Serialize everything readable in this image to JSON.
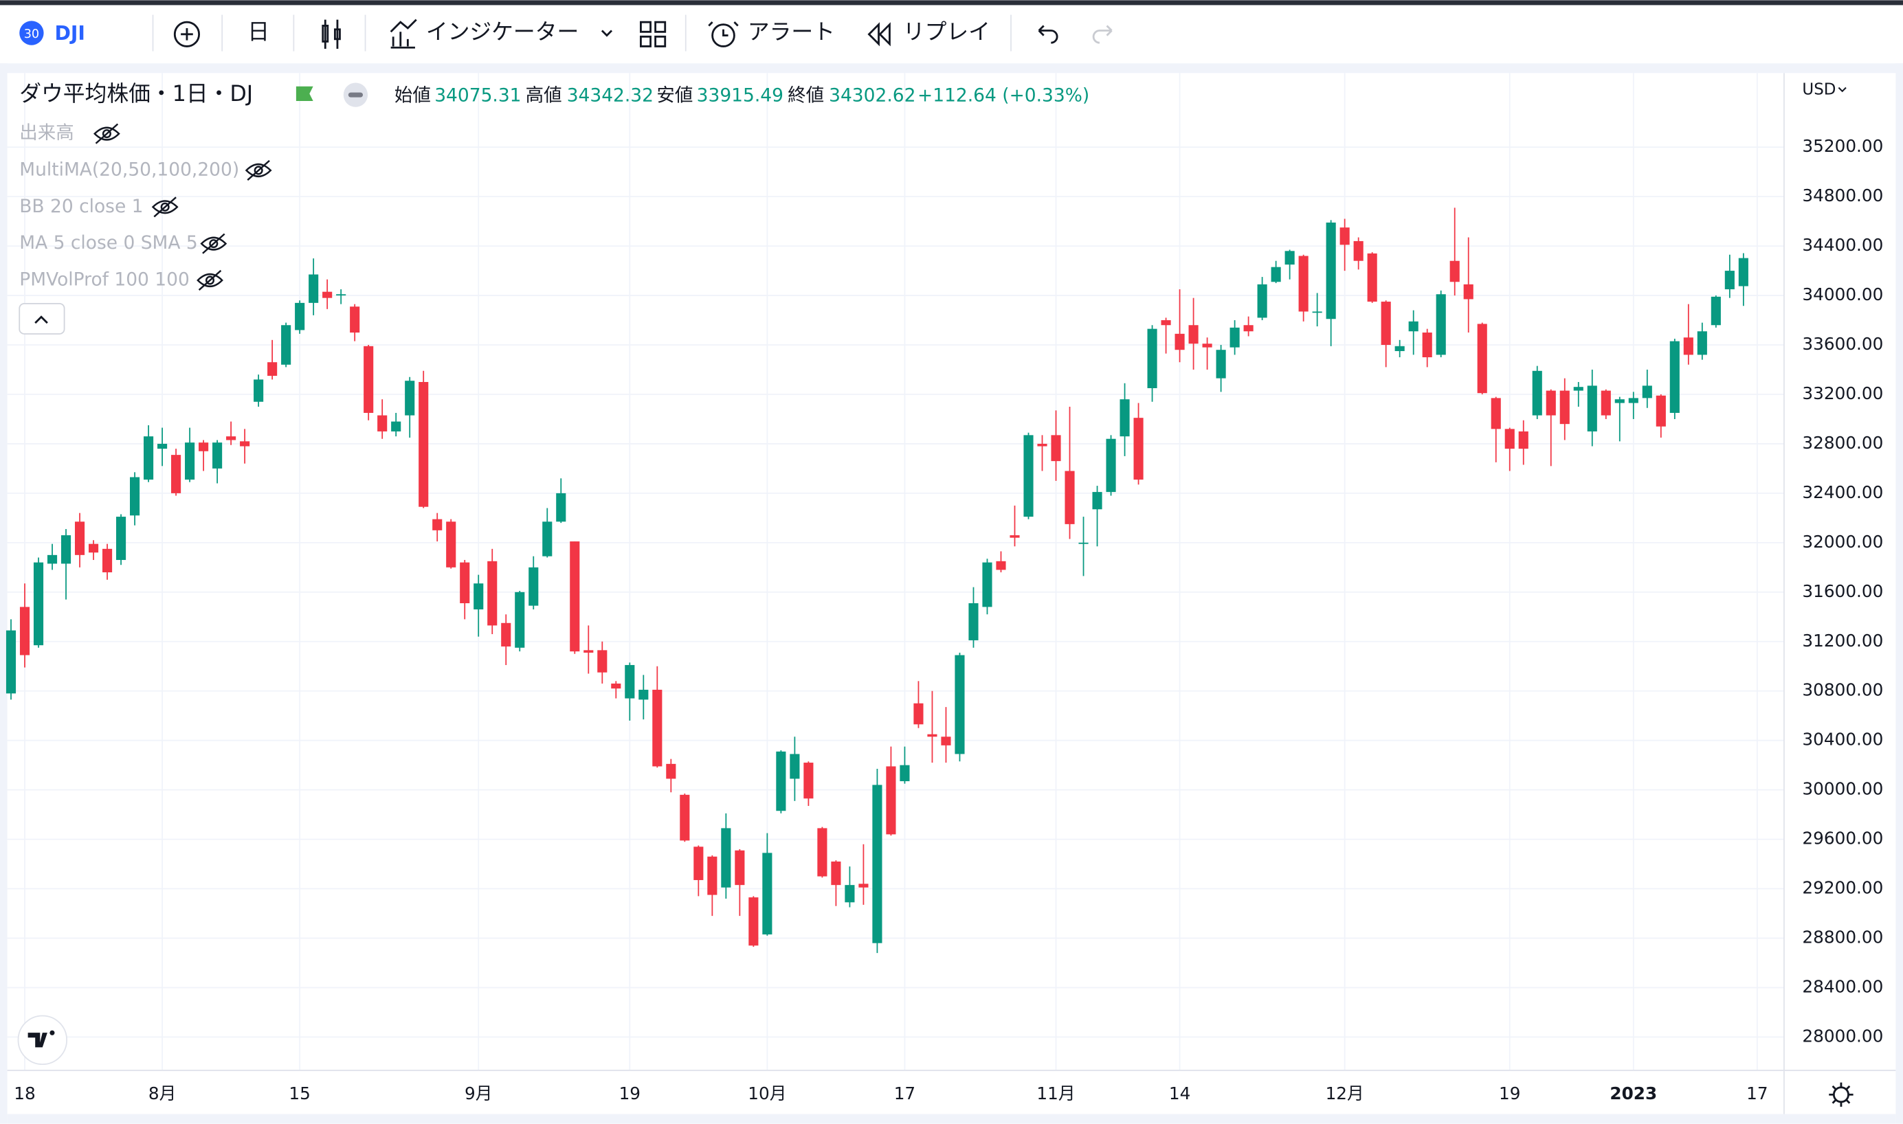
{
  "toolbar": {
    "badge": "30",
    "symbol": "DJI",
    "interval": "日",
    "indicators": "インジケーター",
    "alert": "アラート",
    "replay": "リプレイ"
  },
  "indicators": [
    "出来高",
    "MultiMA(20,50,100,200)",
    "BB 20 close 1",
    "MA 5 close 0 SMA 5",
    "PMVolProf 100 100"
  ],
  "currency": "USD",
  "chart_data": {
    "type": "candlestick",
    "title": "ダウ平均株価・1日・DJ",
    "legend": {
      "open": "始値",
      "high": "高値",
      "low": "安値",
      "close": "終値",
      "change": "+112.64 (+0.33%)"
    },
    "up_color": "#089981",
    "down_color": "#f23645",
    "grid": true,
    "open": [
      30780,
      31480,
      31170,
      31830,
      31830,
      32170,
      31990,
      31950,
      31860,
      32220,
      32510,
      32760,
      32710,
      32510,
      32810,
      32600,
      32860,
      32820,
      33140,
      33460,
      33440,
      33720,
      33940,
      34030,
      34000,
      33910,
      33590,
      33030,
      32900,
      33030,
      33300,
      32190,
      32170,
      31840,
      31460,
      31850,
      31350,
      31150,
      31490,
      31890,
      32170,
      32010,
      31130,
      31130,
      30860,
      30740,
      30730,
      30810,
      30210,
      29960,
      29540,
      29460,
      29210,
      29510,
      29130,
      28830,
      29830,
      30090,
      30220,
      29690,
      29420,
      29090,
      29240,
      28760,
      30190,
      30070,
      30700,
      30450,
      30430,
      30290,
      31210,
      31480,
      31850,
      32060,
      32210,
      32800,
      32870,
      32580,
      31990,
      32270,
      32410,
      32860,
      33010,
      33250,
      33800,
      33690,
      33760,
      33610,
      33330,
      33580,
      33760,
      33820,
      34110,
      34250,
      34320,
      33860,
      33810,
      34550,
      34440,
      34340,
      33950,
      33550,
      33710,
      33700,
      33520,
      34280,
      34090,
      33770,
      33170,
      32920,
      32900,
      33030,
      33230,
      33230,
      33230,
      32900,
      33230,
      33130,
      33130,
      33170,
      33190,
      33050,
      33660,
      33520,
      33760,
      34050,
      34075.31
    ],
    "high": [
      31380,
      31670,
      31880,
      31990,
      32110,
      32240,
      32020,
      31990,
      32230,
      32570,
      32950,
      32930,
      32760,
      32930,
      32830,
      32830,
      32980,
      32920,
      33360,
      33640,
      33780,
      33960,
      34300,
      34130,
      34050,
      33930,
      33600,
      33160,
      33050,
      33340,
      33390,
      32240,
      32190,
      31860,
      31740,
      31950,
      31420,
      31610,
      31890,
      32280,
      32520,
      32010,
      31330,
      31200,
      30880,
      31030,
      30930,
      31000,
      30250,
      29970,
      29550,
      29470,
      29810,
      29520,
      29140,
      29650,
      30320,
      30430,
      30230,
      29700,
      29430,
      29380,
      29560,
      30170,
      30350,
      30350,
      30880,
      30800,
      30670,
      31110,
      31640,
      31870,
      31930,
      32300,
      32890,
      32870,
      33070,
      33100,
      32210,
      32460,
      32870,
      33290,
      33130,
      33760,
      33820,
      34050,
      33980,
      33660,
      33600,
      33800,
      33830,
      34150,
      34280,
      34370,
      34330,
      34020,
      34610,
      34620,
      34470,
      34350,
      33960,
      33640,
      33880,
      33730,
      34040,
      34710,
      34470,
      33780,
      33180,
      32930,
      32990,
      33430,
      33240,
      33330,
      33300,
      33400,
      33240,
      33180,
      33220,
      33400,
      33200,
      33650,
      33930,
      33780,
      34000,
      34330,
      34342.32
    ],
    "low": [
      30730,
      30990,
      31150,
      31780,
      31540,
      31800,
      31860,
      31700,
      31820,
      32140,
      32490,
      32620,
      32380,
      32490,
      32580,
      32480,
      32790,
      32640,
      33100,
      33320,
      33420,
      33690,
      33840,
      33890,
      33930,
      33630,
      32990,
      32840,
      32860,
      32850,
      32280,
      32010,
      31790,
      31380,
      31240,
      31260,
      31010,
      31120,
      31460,
      31880,
      32160,
      31100,
      30940,
      30860,
      30740,
      30560,
      30570,
      30180,
      29980,
      29580,
      29140,
      28980,
      29120,
      28980,
      28730,
      28820,
      29810,
      29910,
      29870,
      29290,
      29060,
      29050,
      29070,
      28680,
      29630,
      30050,
      30500,
      30220,
      30220,
      30230,
      31150,
      31420,
      31760,
      31970,
      32190,
      32580,
      32500,
      32030,
      31730,
      31970,
      32380,
      32700,
      32470,
      33140,
      33530,
      33460,
      33400,
      33400,
      33220,
      33520,
      33670,
      33800,
      34100,
      34130,
      33790,
      33750,
      33590,
      34200,
      34210,
      33940,
      33420,
      33500,
      33520,
      33420,
      33500,
      34000,
      33700,
      33200,
      32650,
      32580,
      32630,
      33000,
      32620,
      32830,
      33100,
      32780,
      33000,
      32820,
      33000,
      33090,
      32850,
      33000,
      33440,
      33480,
      33740,
      33980,
      33915.49
    ],
    "close": [
      31290,
      31090,
      31840,
      31900,
      32060,
      31900,
      31920,
      31760,
      32210,
      32530,
      32860,
      32800,
      32400,
      32810,
      32740,
      32810,
      32830,
      32780,
      33320,
      33350,
      33760,
      33940,
      34170,
      33980,
      34010,
      33700,
      33050,
      32900,
      32980,
      33310,
      32290,
      32100,
      31800,
      31510,
      31670,
      31330,
      31160,
      31600,
      31800,
      32170,
      32400,
      31120,
      31110,
      30950,
      30820,
      31010,
      30810,
      30190,
      30090,
      29590,
      29270,
      29150,
      29690,
      29230,
      28740,
      29490,
      30310,
      30290,
      29930,
      29300,
      29230,
      29230,
      29210,
      30040,
      29640,
      30200,
      30530,
      30430,
      30360,
      31090,
      31510,
      31840,
      31780,
      32040,
      32870,
      32780,
      32660,
      32150,
      32000,
      32410,
      32840,
      33160,
      32510,
      33730,
      33760,
      33560,
      33610,
      33580,
      33560,
      33740,
      33710,
      34090,
      34230,
      34360,
      33870,
      33870,
      34590,
      34410,
      34280,
      33950,
      33600,
      33590,
      33790,
      33500,
      34010,
      34110,
      33970,
      33210,
      32920,
      32760,
      32760,
      33390,
      33030,
      32960,
      33260,
      33270,
      33030,
      33160,
      33170,
      33270,
      32940,
      33630,
      33520,
      33710,
      33990,
      34200,
      34302.62
    ],
    "xlim": [
      -0.8,
      128.6
    ],
    "xticks": [
      {
        "value": 1,
        "label": "18"
      },
      {
        "value": 11,
        "label": "8月"
      },
      {
        "value": 21,
        "label": "15"
      },
      {
        "value": 34,
        "label": "9月"
      },
      {
        "value": 45,
        "label": "19"
      },
      {
        "value": 55,
        "label": "10月"
      },
      {
        "value": 65,
        "label": "17"
      },
      {
        "value": 76,
        "label": "11月"
      },
      {
        "value": 85,
        "label": "14"
      },
      {
        "value": 97,
        "label": "12月"
      },
      {
        "value": 109,
        "label": "19"
      },
      {
        "value": 118,
        "label": "2023"
      },
      {
        "value": 127,
        "label": "17"
      }
    ],
    "ylim": [
      27750,
      35780
    ],
    "yticks": [
      {
        "value": 35200,
        "label": "35200.00"
      },
      {
        "value": 34800,
        "label": "34800.00"
      },
      {
        "value": 34400,
        "label": "34400.00"
      },
      {
        "value": 34000,
        "label": "34000.00"
      },
      {
        "value": 33600,
        "label": "33600.00"
      },
      {
        "value": 33200,
        "label": "33200.00"
      },
      {
        "value": 32800,
        "label": "32800.00"
      },
      {
        "value": 32400,
        "label": "32400.00"
      },
      {
        "value": 32000,
        "label": "32000.00"
      },
      {
        "value": 31600,
        "label": "31600.00"
      },
      {
        "value": 31200,
        "label": "31200.00"
      },
      {
        "value": 30800,
        "label": "30800.00"
      },
      {
        "value": 30400,
        "label": "30400.00"
      },
      {
        "value": 30000,
        "label": "30000.00"
      },
      {
        "value": 29600,
        "label": "29600.00"
      },
      {
        "value": 29200,
        "label": "29200.00"
      },
      {
        "value": 28800,
        "label": "28800.00"
      },
      {
        "value": 28400,
        "label": "28400.00"
      },
      {
        "value": 28000,
        "label": "28000.00"
      }
    ]
  }
}
